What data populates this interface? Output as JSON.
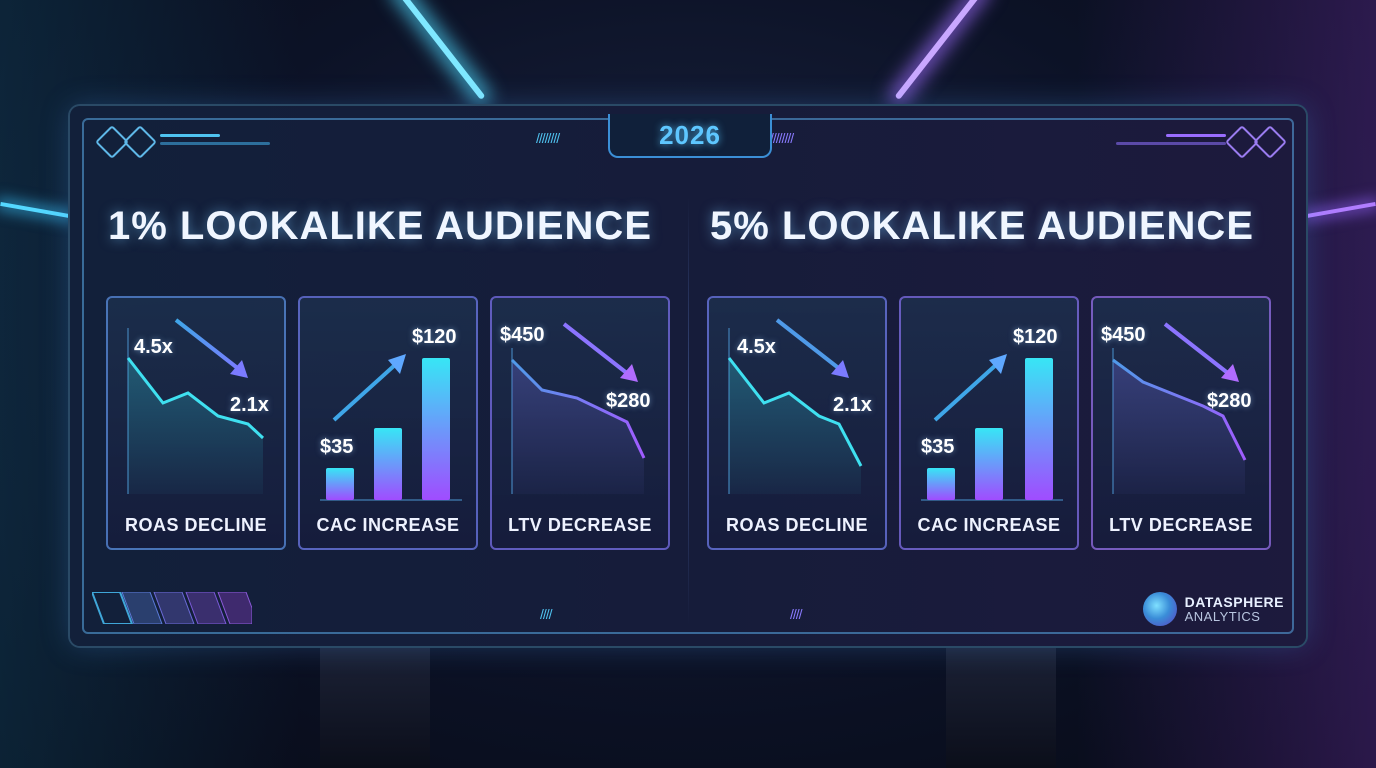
{
  "year": "2026",
  "panels": [
    {
      "title": "1% LOOKALIKE AUDIENCE",
      "cards": [
        {
          "label": "ROAS DECLINE",
          "start": "4.5x",
          "end": "2.1x"
        },
        {
          "label": "CAC INCREASE",
          "start": "$35",
          "end": "$120"
        },
        {
          "label": "LTV DECREASE",
          "start": "$450",
          "end": "$280"
        }
      ]
    },
    {
      "title": "5% LOOKALIKE AUDIENCE",
      "cards": [
        {
          "label": "ROAS DECLINE",
          "start": "4.5x",
          "end": "2.1x"
        },
        {
          "label": "CAC INCREASE",
          "start": "$35",
          "end": "$120"
        },
        {
          "label": "LTV DECREASE",
          "start": "$450",
          "end": "$280"
        }
      ]
    }
  ],
  "brand": {
    "name": "DATASPHERE",
    "sub": "ANALYTICS"
  },
  "colors": {
    "cyan": "#3fe0f0",
    "purple": "#a05cff",
    "accent": "#5ec7ff"
  }
}
